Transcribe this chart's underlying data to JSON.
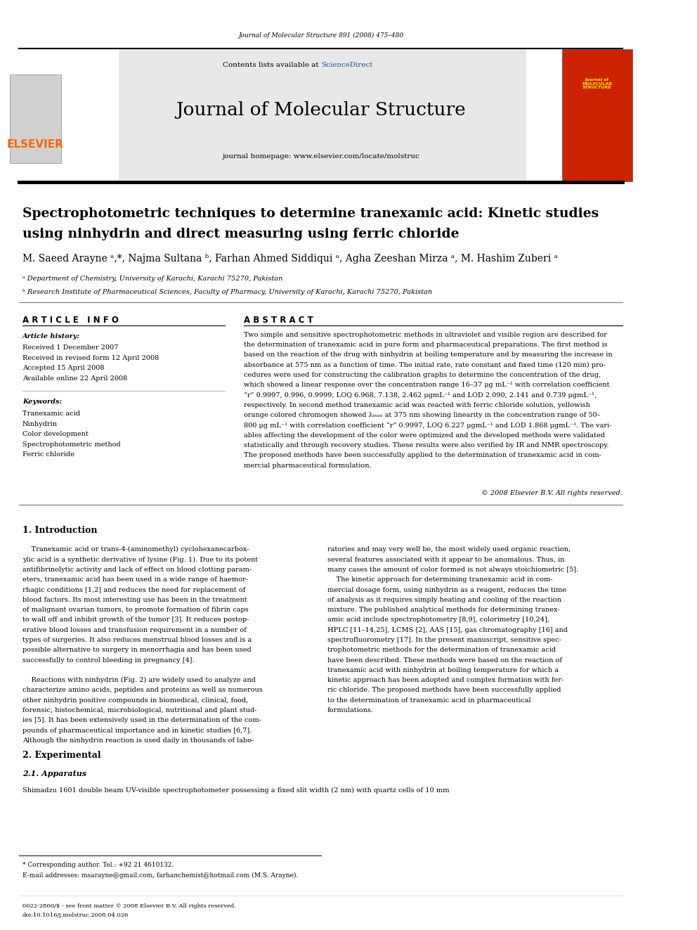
{
  "page_width": 9.92,
  "page_height": 13.23,
  "bg_color": "#ffffff",
  "journal_ref": "Journal of Molecular Structure 891 (2008) 475–480",
  "sciencedirect_color": "#2255aa",
  "journal_name": "Journal of Molecular Structure",
  "journal_homepage": "journal homepage: www.elsevier.com/locate/molstruc",
  "elsevier_color": "#ff6600",
  "elsevier_text": "ELSEVIER",
  "paper_title_line1": "Spectrophotometric techniques to determine tranexamic acid: Kinetic studies",
  "paper_title_line2": "using ninhydrin and direct measuring using ferric chloride",
  "authors": "M. Saeed Arayne ᵃ,*, Najma Sultana ᵇ, Farhan Ahmed Siddiqui ᵃ, Agha Zeeshan Mirza ᵃ, M. Hashim Zuberi ᵃ",
  "affil_a": "ᵃ Department of Chemistry, University of Karachi, Karachi 75270, Pakistan",
  "affil_b": "ᵇ Research Institute of Pharmaceutical Sciences, Faculty of Pharmacy, University of Karachi, Karachi 75270, Pakistan",
  "article_info_header": "A R T I C L E   I N F O",
  "abstract_header": "A B S T R A C T",
  "article_history_header": "Article history:",
  "received1": "Received 1 December 2007",
  "received2": "Received in revised form 12 April 2008",
  "accepted": "Accepted 15 April 2008",
  "available": "Available online 22 April 2008",
  "keywords_header": "Keywords:",
  "keyword1": "Tranexamic acid",
  "keyword2": "Ninhydrin",
  "keyword3": "Color development",
  "keyword4": "Spectrophotometric method",
  "keyword5": "Ferric chloride",
  "copyright": "© 2008 Elsevier B.V. All rights reserved.",
  "intro_header": "1. Introduction",
  "section2_header": "2. Experimental",
  "section21_header": "2.1. Apparatus",
  "section21_text": "Shimadzu 1601 double beam UV-visible spectrophotometer possessing a fixed slit width (2 nm) with quartz cells of 10 mm",
  "footnote_star": "* Corresponding author. Tel.: +92 21 4610132.",
  "footnote_email": "E-mail addresses: msarayne@gmail.com, farhanchemist@hotmail.com (M.S. Arayne).",
  "footer_issn": "0022-2860/$ - see front matter © 2008 Elsevier B.V. All rights reserved.",
  "footer_doi": "doi:10.1016/j.molstruc.2008.04.026"
}
